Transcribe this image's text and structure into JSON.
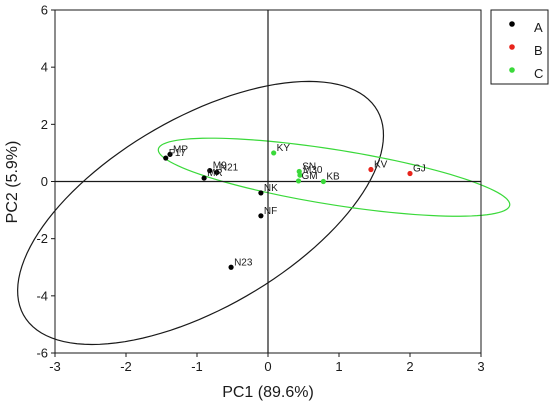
{
  "chart_data": {
    "type": "scatter",
    "title": "",
    "xlabel": "PC1 (89.6%)",
    "ylabel": "PC2 (5.9%)",
    "xlim": [
      -3,
      3
    ],
    "ylim": [
      -6,
      6
    ],
    "xticks": [
      -3,
      -2,
      -1,
      0,
      1,
      2,
      3
    ],
    "yticks": [
      -6,
      -4,
      -2,
      0,
      2,
      4,
      6
    ],
    "grid": false,
    "zero_lines": true,
    "legend_position": "top-right outside",
    "series": [
      {
        "name": "A",
        "color": "#000000",
        "points": [
          {
            "label": "MP",
            "x": -1.38,
            "y": 0.95
          },
          {
            "label": "F17",
            "x": -1.44,
            "y": 0.82
          },
          {
            "label": "M9",
            "x": -0.82,
            "y": 0.38
          },
          {
            "label": "N21",
            "x": -0.72,
            "y": 0.32
          },
          {
            "label": "MR",
            "x": -0.9,
            "y": 0.12
          },
          {
            "label": "NK",
            "x": -0.1,
            "y": -0.4
          },
          {
            "label": "NF",
            "x": -0.1,
            "y": -1.2
          },
          {
            "label": "N23",
            "x": -0.52,
            "y": -3.0
          }
        ]
      },
      {
        "name": "B",
        "color": "#e8241c",
        "points": [
          {
            "label": "KV",
            "x": 1.45,
            "y": 0.42
          },
          {
            "label": "GJ",
            "x": 2.0,
            "y": 0.28
          }
        ]
      },
      {
        "name": "C",
        "color": "#3ad93a",
        "points": [
          {
            "label": "KY",
            "x": 0.08,
            "y": 1.0
          },
          {
            "label": "SN",
            "x": 0.44,
            "y": 0.35
          },
          {
            "label": "M30",
            "x": 0.45,
            "y": 0.22
          },
          {
            "label": "GM",
            "x": 0.43,
            "y": 0.02
          },
          {
            "label": "KB",
            "x": 0.78,
            "y": 0.0
          }
        ]
      }
    ],
    "ellipses": [
      {
        "series": "A",
        "color": "#1a1a1a",
        "cx": -0.95,
        "cy": -1.1,
        "rx": 4.9,
        "ry": 1.95,
        "rotation_deg": 68
      },
      {
        "series": "C",
        "color": "#3ad93a",
        "cx": 0.93,
        "cy": 0.15,
        "rx": 2.68,
        "ry": 0.9,
        "rotation_deg": -24
      }
    ]
  }
}
